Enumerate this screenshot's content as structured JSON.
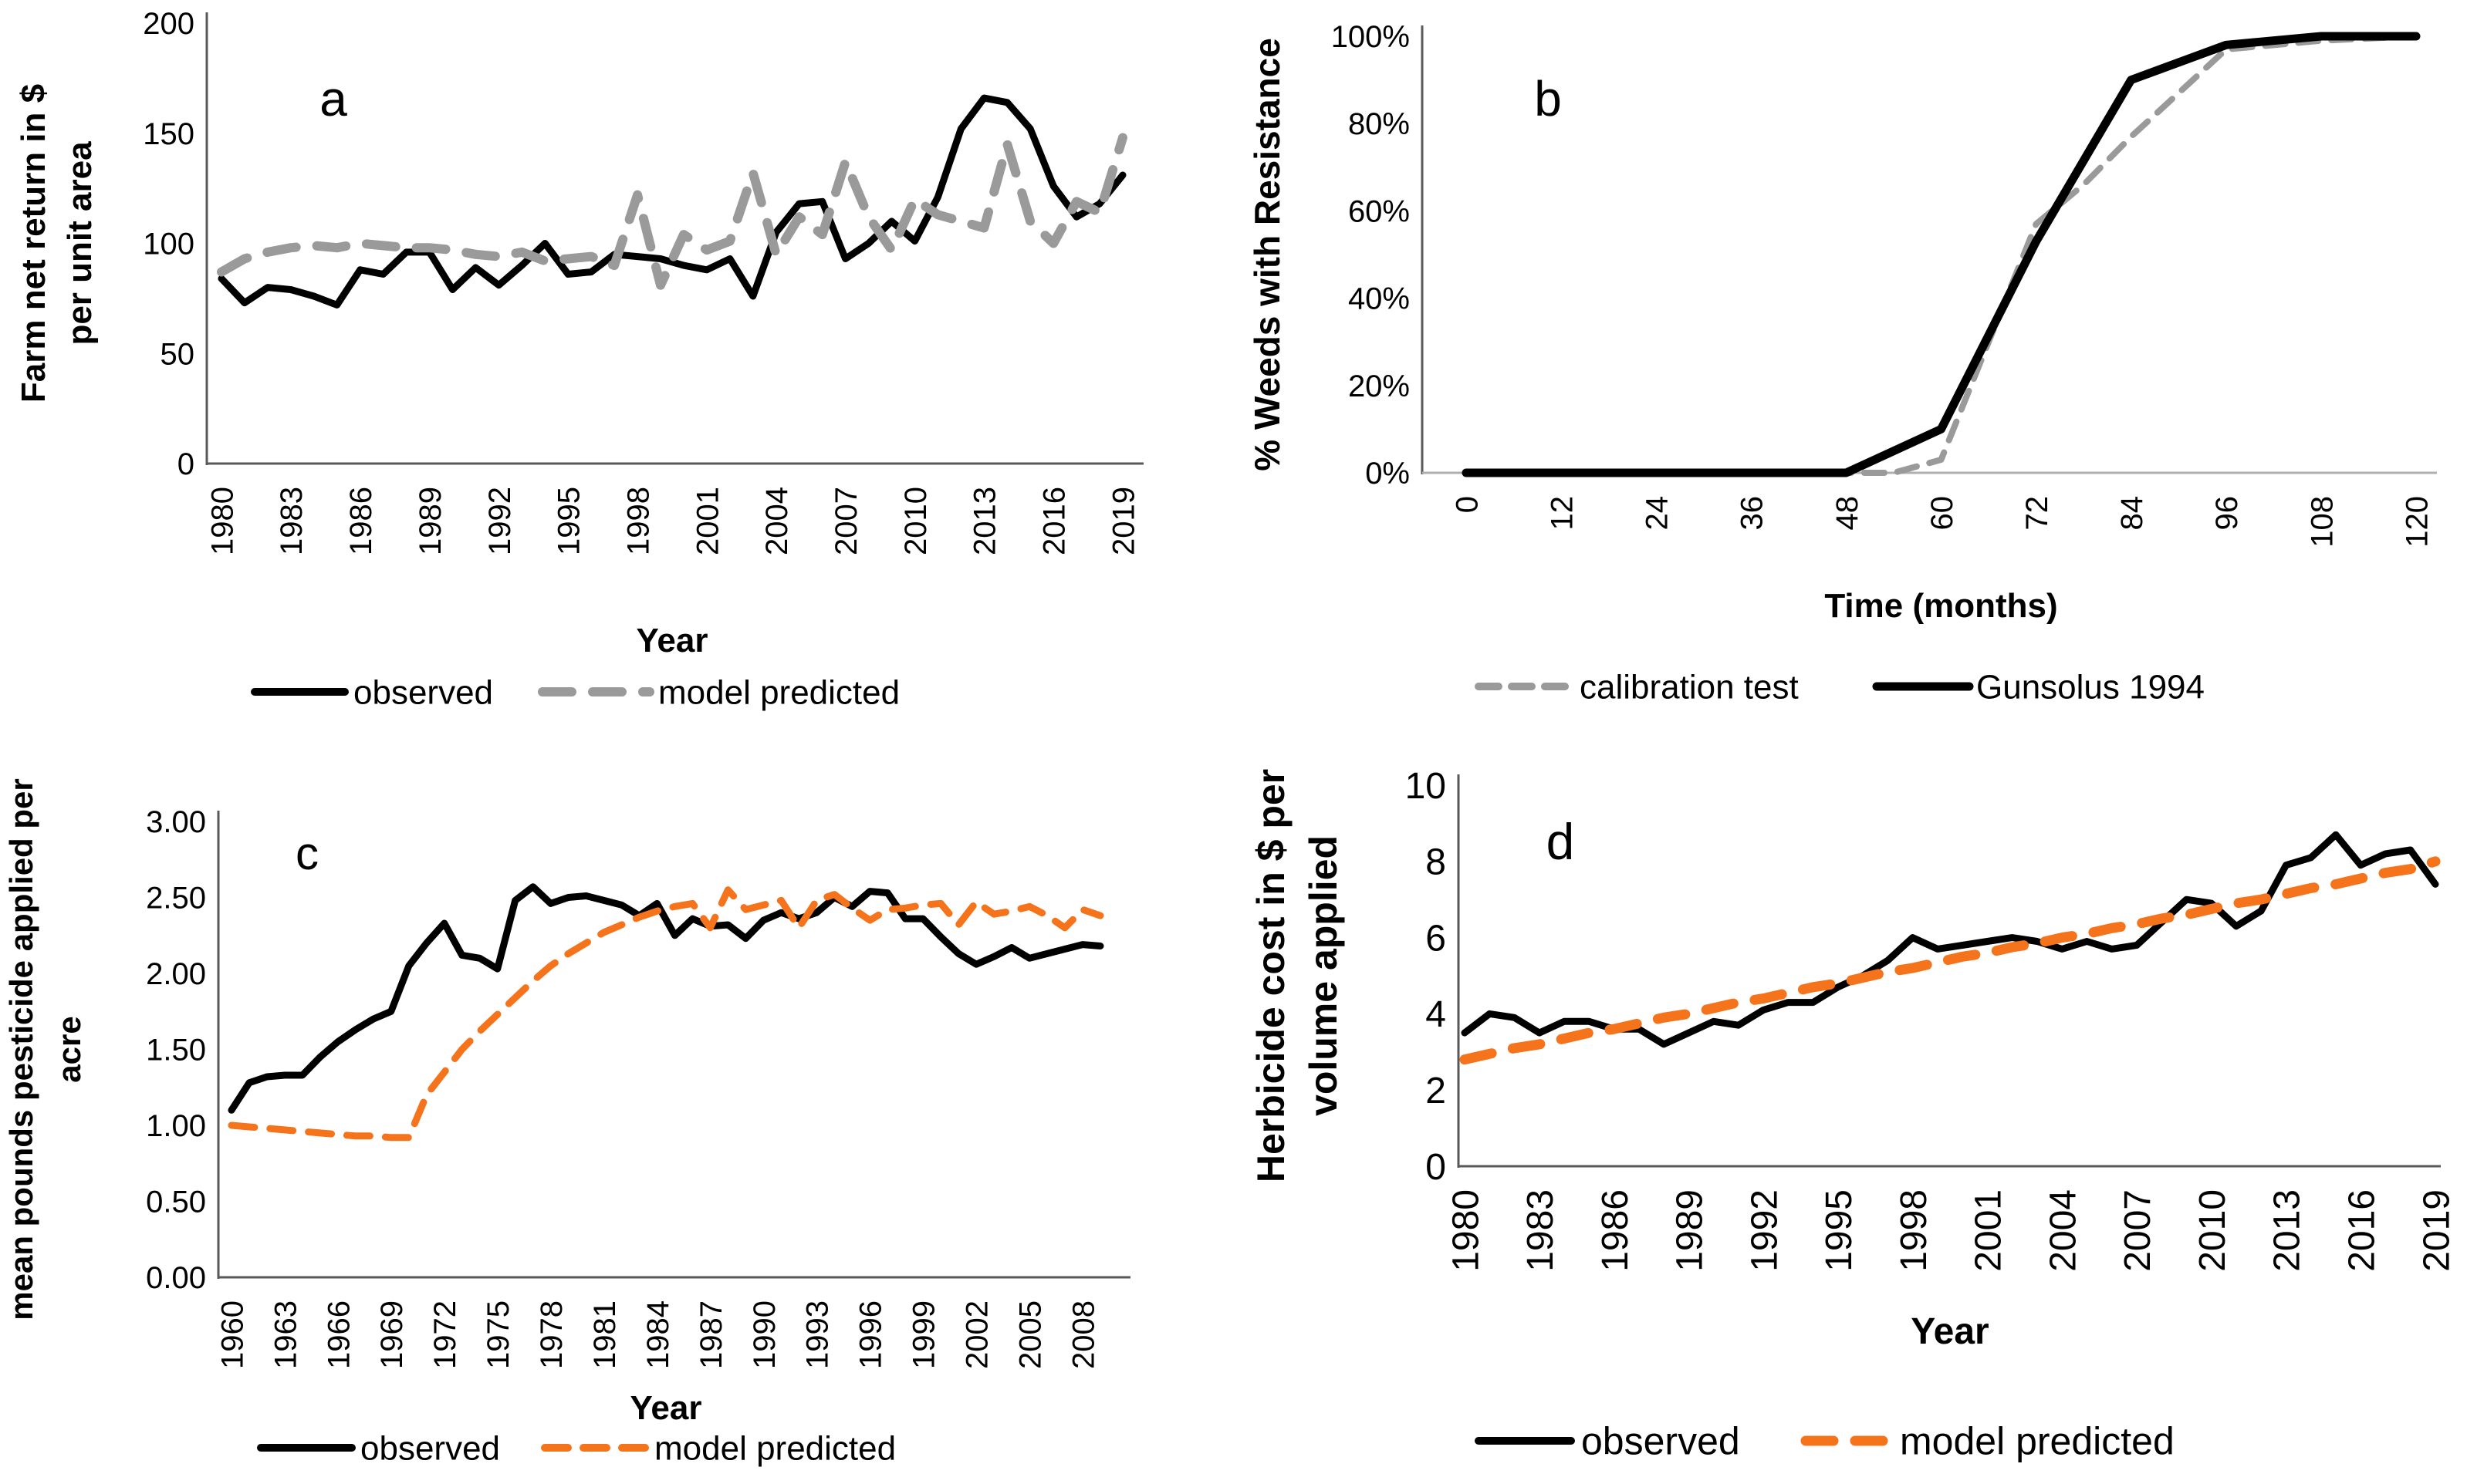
{
  "colors": {
    "black": "#000000",
    "gray": "#9a9a9a",
    "orange": "#f5731a"
  },
  "chart_data": [
    {
      "id": "a",
      "type": "line",
      "letter": "a",
      "ylabel_lines": [
        "Farm net return in $",
        "per unit area"
      ],
      "xlabel": "Year",
      "ylim": [
        0,
        200
      ],
      "xlim": [
        1980,
        2019
      ],
      "yticks": [
        "0",
        "50",
        "100",
        "150",
        "200"
      ],
      "xticks": [
        "1980",
        "1983",
        "1986",
        "1989",
        "1992",
        "1995",
        "1998",
        "2001",
        "2004",
        "2007",
        "2010",
        "2013",
        "2016",
        "2019"
      ],
      "legend_position": "bottom",
      "grid": false,
      "series": [
        {
          "name": "observed",
          "style": "solid-black",
          "x": [
            1980,
            1981,
            1982,
            1983,
            1984,
            1985,
            1986,
            1987,
            1988,
            1989,
            1990,
            1991,
            1992,
            1993,
            1994,
            1995,
            1996,
            1997,
            1998,
            1999,
            2000,
            2001,
            2002,
            2003,
            2004,
            2005,
            2006,
            2007,
            2008,
            2009,
            2010,
            2011,
            2012,
            2013,
            2014,
            2015,
            2016,
            2017,
            2018,
            2019
          ],
          "y": [
            84,
            73,
            80,
            79,
            76,
            72,
            88,
            86,
            96,
            96,
            79,
            89,
            81,
            90,
            100,
            86,
            87,
            95,
            94,
            93,
            90,
            88,
            93,
            76,
            105,
            118,
            119,
            93,
            100,
            110,
            101,
            121,
            152,
            166,
            164,
            152,
            126,
            112,
            118,
            131
          ]
        },
        {
          "name": "model predicted",
          "style": "dashed-gray-thick",
          "x": [
            1980,
            1981,
            1982,
            1983,
            1984,
            1985,
            1986,
            1987,
            1988,
            1989,
            1990,
            1991,
            1992,
            1993,
            1994,
            1995,
            1996,
            1997,
            1998,
            1999,
            2000,
            2001,
            2002,
            2003,
            2004,
            2005,
            2006,
            2007,
            2008,
            2009,
            2010,
            2011,
            2012,
            2013,
            2014,
            2015,
            2016,
            2017,
            2018,
            2019
          ],
          "y": [
            87,
            93,
            96,
            98,
            99,
            98,
            100,
            99,
            98,
            98,
            97,
            95,
            94,
            96,
            92,
            93,
            94,
            90,
            122,
            81,
            104,
            97,
            101,
            132,
            95,
            112,
            104,
            137,
            112,
            97,
            120,
            113,
            110,
            107,
            145,
            110,
            100,
            119,
            114,
            148
          ]
        }
      ]
    },
    {
      "id": "b",
      "type": "line",
      "letter": "b",
      "ylabel_lines": [
        "% Weeds with Resistance"
      ],
      "xlabel": "Time (months)",
      "ylim": [
        0,
        100
      ],
      "xlim": [
        0,
        120
      ],
      "yticks": [
        "0%",
        "20%",
        "40%",
        "60%",
        "80%",
        "100%"
      ],
      "xticks": [
        "0",
        "12",
        "24",
        "36",
        "48",
        "60",
        "72",
        "84",
        "96",
        "108",
        "120"
      ],
      "legend_position": "bottom",
      "grid": false,
      "series": [
        {
          "name": "calibration test",
          "style": "dashed-gray",
          "x": [
            0,
            12,
            24,
            36,
            48,
            54,
            60,
            66,
            72,
            78,
            84,
            90,
            96,
            108,
            120
          ],
          "y": [
            0,
            0,
            0,
            0,
            0,
            0,
            3,
            30,
            57,
            66,
            77,
            87,
            97,
            99,
            100
          ]
        },
        {
          "name": "Gunsolus 1994",
          "style": "solid-black-thick",
          "x": [
            0,
            12,
            24,
            36,
            48,
            60,
            72,
            84,
            96,
            108,
            120
          ],
          "y": [
            0,
            0,
            0,
            0,
            0,
            10,
            53,
            90,
            98,
            100,
            100
          ]
        }
      ]
    },
    {
      "id": "c",
      "type": "line",
      "letter": "c",
      "ylabel_lines": [
        "mean pounds pesticide applied per",
        "acre"
      ],
      "xlabel": "Year",
      "ylim": [
        0,
        3
      ],
      "xlim": [
        1960,
        2009
      ],
      "yticks": [
        "0.00",
        "0.50",
        "1.00",
        "1.50",
        "2.00",
        "2.50",
        "3.00"
      ],
      "xticks": [
        "1960",
        "1963",
        "1966",
        "1969",
        "1972",
        "1975",
        "1978",
        "1981",
        "1984",
        "1987",
        "1990",
        "1993",
        "1996",
        "1999",
        "2002",
        "2005",
        "2008"
      ],
      "legend_position": "bottom",
      "grid": false,
      "series": [
        {
          "name": "observed",
          "style": "solid-black",
          "x": [
            1960,
            1961,
            1962,
            1963,
            1964,
            1965,
            1966,
            1967,
            1968,
            1969,
            1970,
            1971,
            1972,
            1973,
            1974,
            1975,
            1976,
            1977,
            1978,
            1979,
            1980,
            1981,
            1982,
            1983,
            1984,
            1985,
            1986,
            1987,
            1988,
            1989,
            1990,
            1991,
            1992,
            1993,
            1994,
            1995,
            1996,
            1997,
            1998,
            1999,
            2000,
            2001,
            2002,
            2003,
            2004,
            2005,
            2006,
            2007,
            2008,
            2009
          ],
          "y": [
            1.1,
            1.28,
            1.32,
            1.33,
            1.33,
            1.45,
            1.55,
            1.63,
            1.7,
            1.75,
            2.05,
            2.2,
            2.33,
            2.12,
            2.1,
            2.03,
            2.48,
            2.57,
            2.46,
            2.5,
            2.51,
            2.48,
            2.45,
            2.38,
            2.46,
            2.25,
            2.36,
            2.31,
            2.32,
            2.23,
            2.35,
            2.4,
            2.36,
            2.4,
            2.5,
            2.44,
            2.54,
            2.53,
            2.36,
            2.36,
            2.24,
            2.13,
            2.06,
            2.11,
            2.17,
            2.1,
            2.13,
            2.16,
            2.19,
            2.18
          ]
        },
        {
          "name": "model predicted",
          "style": "dashed-orange",
          "x": [
            1960,
            1961,
            1962,
            1963,
            1964,
            1965,
            1966,
            1967,
            1968,
            1969,
            1970,
            1971,
            1972,
            1973,
            1974,
            1975,
            1976,
            1977,
            1978,
            1979,
            1980,
            1981,
            1982,
            1983,
            1984,
            1985,
            1986,
            1987,
            1988,
            1989,
            1990,
            1991,
            1992,
            1993,
            1994,
            1995,
            1996,
            1997,
            1998,
            1999,
            2000,
            2001,
            2002,
            2003,
            2004,
            2005,
            2006,
            2007,
            2008,
            2009
          ],
          "y": [
            1.0,
            0.99,
            0.98,
            0.97,
            0.96,
            0.95,
            0.94,
            0.93,
            0.93,
            0.92,
            0.92,
            1.2,
            1.35,
            1.5,
            1.62,
            1.73,
            1.84,
            1.95,
            2.05,
            2.13,
            2.2,
            2.27,
            2.32,
            2.37,
            2.41,
            2.44,
            2.46,
            2.3,
            2.55,
            2.42,
            2.45,
            2.48,
            2.3,
            2.48,
            2.52,
            2.43,
            2.35,
            2.42,
            2.43,
            2.45,
            2.46,
            2.32,
            2.47,
            2.39,
            2.41,
            2.44,
            2.38,
            2.3,
            2.42,
            2.38
          ]
        }
      ]
    },
    {
      "id": "d",
      "type": "line",
      "letter": "d",
      "ylabel_lines": [
        "Herbicide cost in $ per",
        "volume applied"
      ],
      "xlabel": "Year",
      "ylim": [
        0,
        10
      ],
      "xlim": [
        1980,
        2019
      ],
      "yticks": [
        "0",
        "2",
        "4",
        "6",
        "8",
        "10"
      ],
      "xticks": [
        "1980",
        "1983",
        "1986",
        "1989",
        "1992",
        "1995",
        "1998",
        "2001",
        "2004",
        "2007",
        "2010",
        "2013",
        "2016",
        "2019"
      ],
      "legend_position": "bottom",
      "grid": false,
      "series": [
        {
          "name": "observed",
          "style": "solid-black",
          "x": [
            1980,
            1981,
            1982,
            1983,
            1984,
            1985,
            1986,
            1987,
            1988,
            1989,
            1990,
            1991,
            1992,
            1993,
            1994,
            1995,
            1996,
            1997,
            1998,
            1999,
            2000,
            2001,
            2002,
            2003,
            2004,
            2005,
            2006,
            2007,
            2008,
            2009,
            2010,
            2011,
            2012,
            2013,
            2014,
            2015,
            2016,
            2017,
            2018,
            2019
          ],
          "y": [
            3.5,
            4.0,
            3.9,
            3.5,
            3.8,
            3.8,
            3.6,
            3.6,
            3.2,
            3.5,
            3.8,
            3.7,
            4.1,
            4.3,
            4.3,
            4.7,
            5.0,
            5.4,
            6.0,
            5.7,
            5.8,
            5.9,
            6.0,
            5.9,
            5.7,
            5.9,
            5.7,
            5.8,
            6.4,
            7.0,
            6.9,
            6.3,
            6.7,
            7.9,
            8.1,
            8.7,
            7.9,
            8.2,
            8.3,
            7.4
          ]
        },
        {
          "name": "model predicted",
          "style": "dashed-orange-thick",
          "x": [
            1980,
            1981,
            1982,
            1983,
            1984,
            1985,
            1986,
            1987,
            1988,
            1989,
            1990,
            1991,
            1992,
            1993,
            1994,
            1995,
            1996,
            1997,
            1998,
            1999,
            2000,
            2001,
            2002,
            2003,
            2004,
            2005,
            2006,
            2007,
            2008,
            2009,
            2010,
            2011,
            2012,
            2013,
            2014,
            2015,
            2016,
            2017,
            2018,
            2019
          ],
          "y": [
            2.8,
            2.95,
            3.1,
            3.2,
            3.35,
            3.5,
            3.6,
            3.75,
            3.9,
            4.0,
            4.15,
            4.3,
            4.4,
            4.55,
            4.7,
            4.8,
            4.95,
            5.1,
            5.2,
            5.35,
            5.5,
            5.6,
            5.75,
            5.85,
            6.0,
            6.1,
            6.25,
            6.35,
            6.5,
            6.6,
            6.75,
            6.9,
            7.0,
            7.15,
            7.3,
            7.4,
            7.55,
            7.7,
            7.8,
            8.0
          ]
        }
      ]
    }
  ]
}
